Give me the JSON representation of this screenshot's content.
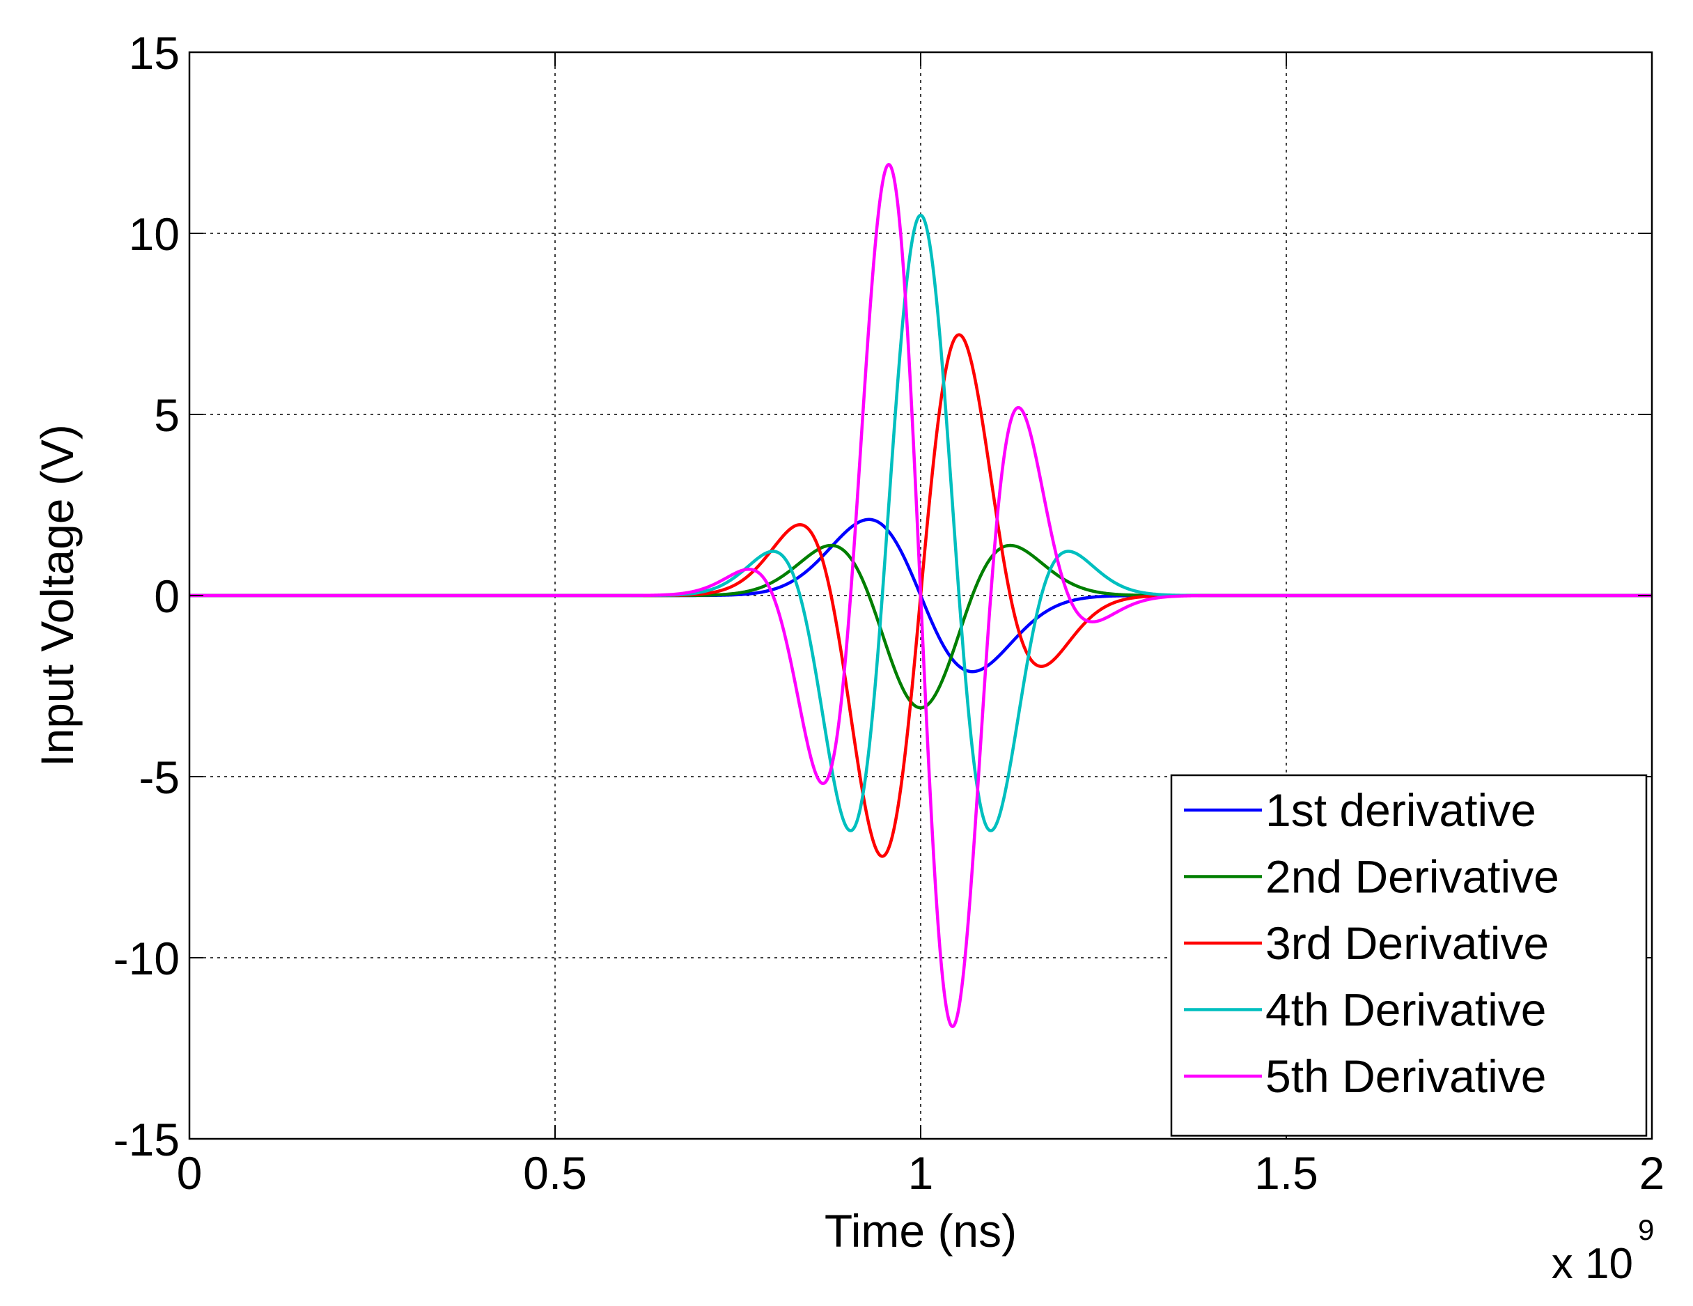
{
  "chart_data": {
    "type": "line",
    "title": "",
    "xlabel": "Time (ns)",
    "ylabel": "Input Voltage (V)",
    "x_multiplier_label": "x 10",
    "x_multiplier_exponent": "9",
    "xlim": [
      0,
      2
    ],
    "ylim": [
      -15,
      15
    ],
    "x_ticks": [
      0,
      0.5,
      1,
      1.5,
      2
    ],
    "x_tick_labels": [
      "0",
      "0.5",
      "1",
      "1.5",
      "2"
    ],
    "y_ticks": [
      -15,
      -10,
      -5,
      0,
      5,
      10,
      15
    ],
    "y_tick_labels": [
      "-15",
      "-10",
      "-5",
      "0",
      "5",
      "10",
      "15"
    ],
    "grid": true,
    "legend_position": "bottom-right",
    "pulse_center": 1.0,
    "series": [
      {
        "name": "1st derivative",
        "color": "#0000ff",
        "order": 1,
        "peaks": [
          {
            "x": 0.92,
            "y": 2.1
          },
          {
            "x": 1.08,
            "y": -2.1
          }
        ]
      },
      {
        "name": "2nd Derivative",
        "color": "#007f00",
        "order": 2,
        "peaks": [
          {
            "x": 0.86,
            "y": 1.4
          },
          {
            "x": 1.0,
            "y": -3.1
          },
          {
            "x": 1.14,
            "y": 1.4
          }
        ]
      },
      {
        "name": "3rd Derivative",
        "color": "#ff0000",
        "order": 3,
        "peaks": [
          {
            "x": 0.85,
            "y": 1.9
          },
          {
            "x": 0.955,
            "y": -7.2
          },
          {
            "x": 1.045,
            "y": 7.2
          },
          {
            "x": 1.15,
            "y": -1.9
          }
        ]
      },
      {
        "name": "4th Derivative",
        "color": "#00bfbf",
        "order": 4,
        "peaks": [
          {
            "x": 0.83,
            "y": 1.2
          },
          {
            "x": 0.93,
            "y": -6.5
          },
          {
            "x": 1.0,
            "y": 10.5
          },
          {
            "x": 1.07,
            "y": -6.5
          },
          {
            "x": 1.17,
            "y": 1.2
          }
        ]
      },
      {
        "name": "5th Derivative",
        "color": "#ff00ff",
        "order": 5,
        "peaks": [
          {
            "x": 0.83,
            "y": 0.8
          },
          {
            "x": 0.9,
            "y": -5.2
          },
          {
            "x": 0.97,
            "y": 11.9
          },
          {
            "x": 1.03,
            "y": -11.9
          },
          {
            "x": 1.1,
            "y": 5.2
          },
          {
            "x": 1.17,
            "y": -0.8
          }
        ]
      }
    ]
  }
}
